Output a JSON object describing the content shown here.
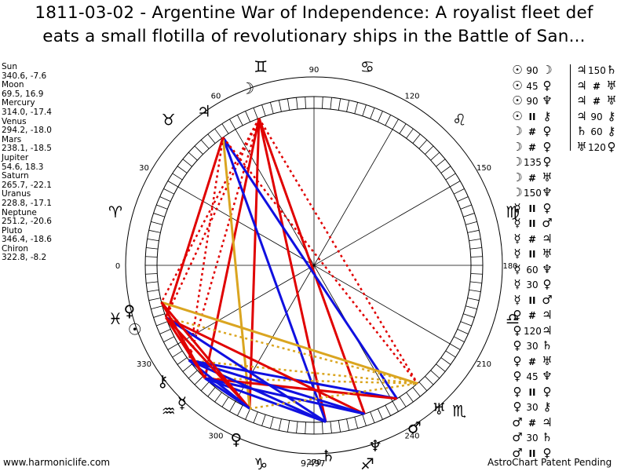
{
  "title": {
    "line1": "1811-03-02 - Argentine War of Independence: A royalist fleet def",
    "line2": "eats a small flotilla of revolutionary ships in the Battle of San..."
  },
  "positions": [
    {
      "name": "Sun",
      "value": "340.6, -7.6"
    },
    {
      "name": "Moon",
      "value": "69.5, 16.9"
    },
    {
      "name": "Mercury",
      "value": "314.0, -17.4"
    },
    {
      "name": "Venus",
      "value": "294.2, -18.0"
    },
    {
      "name": "Mars",
      "value": "238.1, -18.5"
    },
    {
      "name": "Jupiter",
      "value": "54.6, 18.3"
    },
    {
      "name": "Saturn",
      "value": "265.7, -22.1"
    },
    {
      "name": "Uranus",
      "value": "228.8, -17.1"
    },
    {
      "name": "Neptune",
      "value": "251.2, -20.6"
    },
    {
      "name": "Pluto",
      "value": "346.4, -18.6"
    },
    {
      "name": "Chiron",
      "value": "322.8, -8.2"
    }
  ],
  "aspects_col1": [
    {
      "a": "☉",
      "c": "90",
      "b": "☽"
    },
    {
      "a": "☉",
      "c": "45",
      "b": "♀"
    },
    {
      "a": "☉",
      "c": "90",
      "b": "♆"
    },
    {
      "a": "☉",
      "c": "II",
      "b": "⚷"
    },
    {
      "a": "☽",
      "c": "#",
      "b": "♀"
    },
    {
      "a": "☽",
      "c": "#",
      "b": "♀"
    },
    {
      "a": "☽",
      "c": "135",
      "b": "♀"
    },
    {
      "a": "☽",
      "c": "#",
      "b": "♅"
    },
    {
      "a": "☽",
      "c": "150",
      "b": "♆"
    },
    {
      "a": "☿",
      "c": "II",
      "b": "♀"
    },
    {
      "a": "☿",
      "c": "II",
      "b": "♂"
    },
    {
      "a": "☿",
      "c": "#",
      "b": "♃"
    },
    {
      "a": "☿",
      "c": "II",
      "b": "♅"
    },
    {
      "a": "☿",
      "c": "60",
      "b": "♆"
    },
    {
      "a": "☿",
      "c": "30",
      "b": "♀"
    },
    {
      "a": "☿",
      "c": "II",
      "b": "♂"
    },
    {
      "a": "♀",
      "c": "#",
      "b": "♃"
    },
    {
      "a": "♀",
      "c": "120",
      "b": "♃"
    },
    {
      "a": "♀",
      "c": "30",
      "b": "♄"
    },
    {
      "a": "♀",
      "c": "#",
      "b": "♅"
    },
    {
      "a": "♀",
      "c": "45",
      "b": "♆"
    },
    {
      "a": "♀",
      "c": "II",
      "b": "♀"
    },
    {
      "a": "♀",
      "c": "30",
      "b": "⚷"
    },
    {
      "a": "♂",
      "c": "#",
      "b": "♃"
    },
    {
      "a": "♂",
      "c": "30",
      "b": "♄"
    },
    {
      "a": "♂",
      "c": "II",
      "b": "♀"
    }
  ],
  "aspects_col2": [
    {
      "a": "♃",
      "c": "150",
      "b": "♄"
    },
    {
      "a": "♃",
      "c": "#",
      "b": "♅"
    },
    {
      "a": "♃",
      "c": "#",
      "b": "♅"
    },
    {
      "a": "♃",
      "c": "90",
      "b": "⚷"
    },
    {
      "a": "♄",
      "c": "60",
      "b": "⚷"
    },
    {
      "a": "♅",
      "c": "120",
      "b": "♀"
    }
  ],
  "wheel": {
    "degree_labels": [
      "0",
      "30",
      "60",
      "90",
      "120",
      "150",
      "180",
      "210",
      "240",
      "270",
      "300",
      "330"
    ],
    "signs": [
      "♈",
      "♉",
      "♊",
      "♋",
      "♌",
      "♍",
      "♎",
      "♏",
      "♐",
      "♑",
      "♒",
      "♓"
    ],
    "planets": [
      {
        "name": "Sun",
        "glyph": "☉",
        "lon": 340.6
      },
      {
        "name": "Moon",
        "glyph": "☽",
        "lon": 69.5
      },
      {
        "name": "Mercury",
        "glyph": "☿",
        "lon": 314.0
      },
      {
        "name": "Venus",
        "glyph": "♀",
        "lon": 294.2
      },
      {
        "name": "Mars",
        "glyph": "♂",
        "lon": 238.1
      },
      {
        "name": "Jupiter",
        "glyph": "♃",
        "lon": 54.6
      },
      {
        "name": "Saturn",
        "glyph": "♄",
        "lon": 265.7
      },
      {
        "name": "Uranus",
        "glyph": "♅",
        "lon": 228.8
      },
      {
        "name": "Neptune",
        "glyph": "♆",
        "lon": 251.2
      },
      {
        "name": "Pluto",
        "glyph": "♀",
        "lon": 346.4
      },
      {
        "name": "Chiron",
        "glyph": "⚷",
        "lon": 322.8
      }
    ],
    "aspects": [
      {
        "p1": "Moon",
        "p2": "Venus",
        "color": "#e00000",
        "style": "solid"
      },
      {
        "p1": "Moon",
        "p2": "Saturn",
        "color": "#e00000",
        "style": "solid"
      },
      {
        "p1": "Moon",
        "p2": "Mercury",
        "color": "#e00000",
        "style": "solid"
      },
      {
        "p1": "Moon",
        "p2": "Neptune",
        "color": "#e00000",
        "style": "solid"
      },
      {
        "p1": "Moon",
        "p2": "Sun",
        "color": "#e00000",
        "style": "dotted"
      },
      {
        "p1": "Moon",
        "p2": "Uranus",
        "color": "#e00000",
        "style": "dotted"
      },
      {
        "p1": "Moon",
        "p2": "Chiron",
        "color": "#e00000",
        "style": "dotted"
      },
      {
        "p1": "Moon",
        "p2": "Pluto",
        "color": "#e00000",
        "style": "dotted"
      },
      {
        "p1": "Jupiter",
        "p2": "Saturn",
        "color": "#1010e0",
        "style": "solid"
      },
      {
        "p1": "Jupiter",
        "p2": "Mars",
        "color": "#1010e0",
        "style": "solid"
      },
      {
        "p1": "Jupiter",
        "p2": "Venus",
        "color": "#daa520",
        "style": "solid"
      },
      {
        "p1": "Jupiter",
        "p2": "Uranus",
        "color": "#e00000",
        "style": "dotted"
      },
      {
        "p1": "Jupiter",
        "p2": "Chiron",
        "color": "#e00000",
        "style": "dotted"
      },
      {
        "p1": "Jupiter",
        "p2": "Sun",
        "color": "#e00000",
        "style": "solid"
      },
      {
        "p1": "Uranus",
        "p2": "Pluto",
        "color": "#daa520",
        "style": "solid"
      },
      {
        "p1": "Uranus",
        "p2": "Sun",
        "color": "#daa520",
        "style": "dotted"
      },
      {
        "p1": "Uranus",
        "p2": "Chiron",
        "color": "#daa520",
        "style": "dotted"
      },
      {
        "p1": "Uranus",
        "p2": "Mercury",
        "color": "#daa520",
        "style": "dotted"
      },
      {
        "p1": "Mars",
        "p2": "Chiron",
        "color": "#1010e0",
        "style": "solid"
      },
      {
        "p1": "Mars",
        "p2": "Mercury",
        "color": "#e00000",
        "style": "solid"
      },
      {
        "p1": "Neptune",
        "p2": "Mercury",
        "color": "#1010e0",
        "style": "solid"
      },
      {
        "p1": "Neptune",
        "p2": "Sun",
        "color": "#e00000",
        "style": "solid"
      },
      {
        "p1": "Neptune",
        "p2": "Chiron",
        "color": "#1010e0",
        "style": "solid"
      },
      {
        "p1": "Saturn",
        "p2": "Mercury",
        "color": "#1010e0",
        "style": "solid"
      },
      {
        "p1": "Saturn",
        "p2": "Chiron",
        "color": "#1010e0",
        "style": "solid"
      },
      {
        "p1": "Saturn",
        "p2": "Sun",
        "color": "#1010e0",
        "style": "solid"
      },
      {
        "p1": "Venus",
        "p2": "Sun",
        "color": "#e00000",
        "style": "solid"
      },
      {
        "p1": "Venus",
        "p2": "Pluto",
        "color": "#e00000",
        "style": "solid"
      },
      {
        "p1": "Venus",
        "p2": "Chiron",
        "color": "#1010e0",
        "style": "solid"
      },
      {
        "p1": "Venus",
        "p2": "Mercury",
        "color": "#1010e0",
        "style": "solid"
      },
      {
        "p1": "Sun",
        "p2": "Mercury",
        "color": "#e00000",
        "style": "solid"
      },
      {
        "p1": "Pluto",
        "p2": "Mercury",
        "color": "#e00000",
        "style": "solid"
      },
      {
        "p1": "Venus",
        "p2": "Uranus",
        "color": "#daa520",
        "style": "dotted"
      }
    ]
  },
  "count_label": "9,497",
  "footer": {
    "left": "www.harmoniclife.com",
    "right": "AstroChart Patent Pending"
  }
}
